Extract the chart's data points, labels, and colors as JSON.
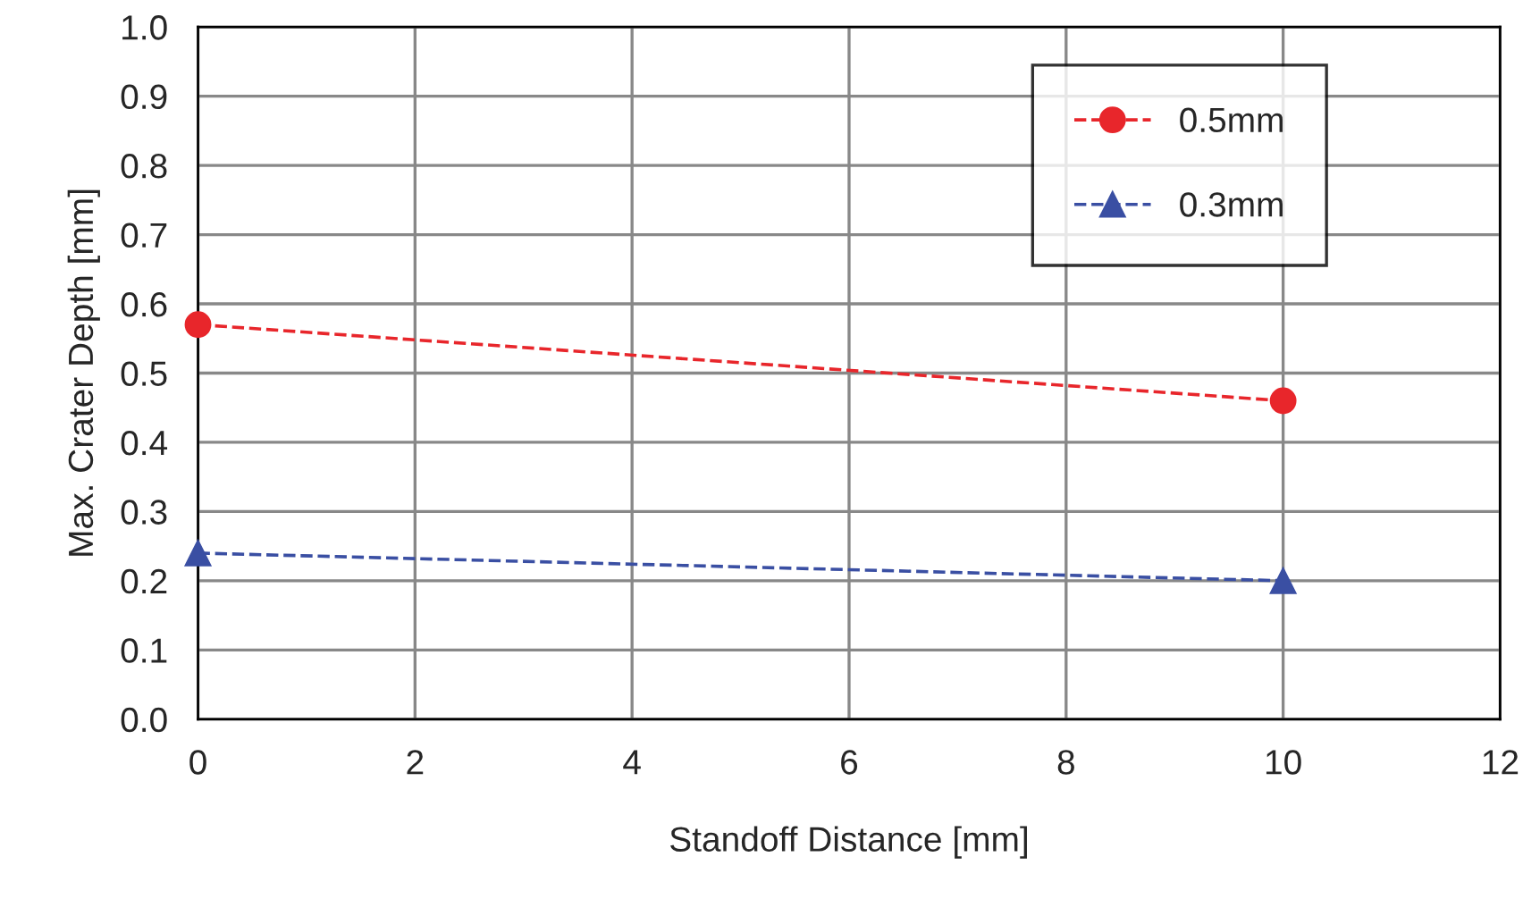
{
  "chart_data": {
    "type": "line",
    "xlabel": "Standoff Distance [mm]",
    "ylabel": "Max. Crater Depth [mm]",
    "x": [
      0,
      10
    ],
    "series": [
      {
        "name": "0.5mm",
        "color": "#e8262b",
        "values": [
          0.57,
          0.46
        ],
        "marker": "circle"
      },
      {
        "name": "0.3mm",
        "color": "#3a4fa3",
        "values": [
          0.24,
          0.2
        ],
        "marker": "triangle"
      }
    ],
    "line_style": "dashed",
    "xlim": [
      0,
      12
    ],
    "xticks": [
      0,
      2,
      4,
      6,
      8,
      10,
      12
    ],
    "ylim": [
      0,
      1.0
    ],
    "yticks": [
      {
        "value": 0,
        "label": "0.0"
      },
      0.1,
      0.2,
      0.3,
      0.4,
      0.5,
      0.6,
      0.7,
      0.8,
      0.9,
      {
        "value": 1.0,
        "label": "1.0"
      }
    ],
    "grid": true,
    "legend": "top right"
  }
}
